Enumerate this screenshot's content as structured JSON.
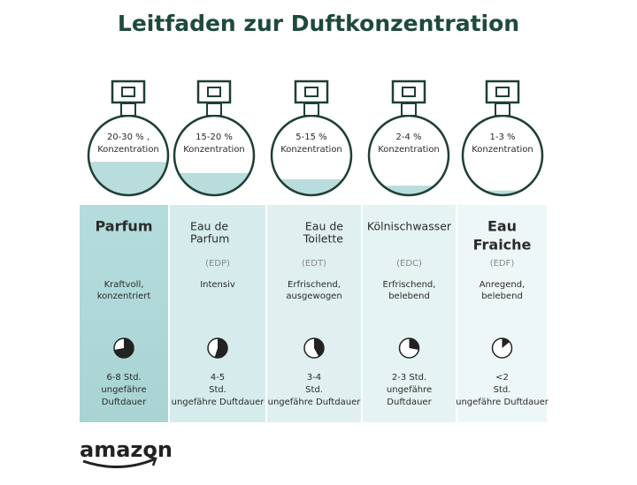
{
  "title": "Leitfaden zur Duftkonzentration",
  "columns": [
    {
      "concentration": [
        "20-30 % ,",
        "Konzentration"
      ],
      "name": [
        "Parfum"
      ],
      "description": [
        "Kraftvoll,",
        "konzentriert"
      ],
      "duration": [
        "6-8 Std.",
        "ungefähre",
        "Duftdauer"
      ]
    },
    {
      "concentration": [
        "15-20 %",
        "Konzentration"
      ],
      "name": [
        "Eau de",
        "Parfum"
      ],
      "code": "(EDP)",
      "description": [
        "Intensiv"
      ],
      "duration": [
        "4-5",
        "Std.",
        "ungefähre Duftdauer"
      ]
    },
    {
      "concentration": [
        "5-15 %",
        "Konzentration"
      ],
      "name": [
        "Eau de",
        "Toilette"
      ],
      "code": "(EDT)",
      "description": [
        "Erfrischend,",
        "ausgewogen"
      ],
      "duration": [
        "3-4",
        "Std.",
        "ungefähre Duftdauer"
      ]
    },
    {
      "concentration": [
        "2-4 %",
        "Konzentration"
      ],
      "name": [
        "Kölnischwasser"
      ],
      "code": "(EDC)",
      "description": [
        "Erfrischend,",
        "belebend"
      ],
      "duration": [
        "2-3 Std.",
        "ungefähre",
        "Duftdauer"
      ]
    },
    {
      "concentration": [
        "1-3 %",
        "Konzentration"
      ],
      "name": [
        "Eau",
        "Fraiche"
      ],
      "code": "(EDF)",
      "description": [
        "Anregend,",
        "belebend"
      ],
      "duration": [
        "<2",
        "Std.",
        "ungefähre Duftdauer"
      ]
    }
  ],
  "logo": "amazon"
}
